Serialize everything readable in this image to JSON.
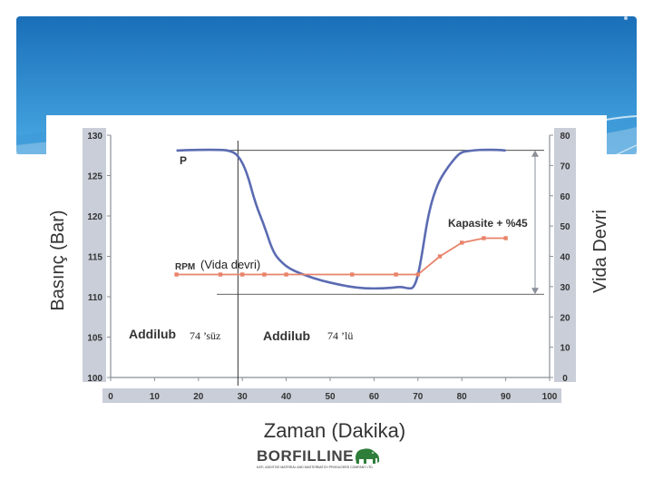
{
  "colors": {
    "header_top": "#1a6fb8",
    "header_bottom": "#49a9e4",
    "pressure_line": "#5b6bb2",
    "rpm_line": "#e8836a",
    "tick_box": "#c9ced8",
    "grid": "#8a8f98"
  },
  "chart_data": {
    "type": "line",
    "xlabel": "Zaman (Dakika)",
    "ylabel": "Basınç (Bar)",
    "y2label": "Vida Devri",
    "xlim": [
      0,
      100
    ],
    "ylim": [
      100,
      130
    ],
    "y2lim": [
      0,
      80
    ],
    "x_ticks": [
      "0",
      "10",
      "20",
      "30",
      "40",
      "50",
      "60",
      "70",
      "80",
      "90",
      "100"
    ],
    "y_ticks": [
      "100",
      "105",
      "110",
      "115",
      "120",
      "125",
      "130"
    ],
    "y2_ticks": [
      "0",
      "10",
      "20",
      "30",
      "40",
      "50",
      "60",
      "70",
      "80"
    ],
    "series": [
      {
        "name": "P",
        "axis": "left",
        "color": "#5b6bb2",
        "x": [
          15,
          20,
          25,
          27,
          29,
          31,
          33,
          35,
          37,
          39,
          41,
          44,
          48,
          52,
          56,
          60,
          64,
          66,
          68,
          69,
          70,
          71,
          72,
          73,
          74,
          75,
          77,
          79,
          80,
          81,
          83,
          85,
          88,
          90
        ],
        "y": [
          128.1,
          128.2,
          128.2,
          128.1,
          127.6,
          125.5,
          121.5,
          118.8,
          115.5,
          114.2,
          113.4,
          112.7,
          112.0,
          111.5,
          111.1,
          111.0,
          111.1,
          111.25,
          111.0,
          111.1,
          112.5,
          115.5,
          119.0,
          121.5,
          123.2,
          124.5,
          126.2,
          127.5,
          127.9,
          128.0,
          128.15,
          128.2,
          128.2,
          128.1
        ]
      },
      {
        "name": "RPM",
        "axis": "right",
        "color": "#e8836a",
        "markers_x": [
          15,
          25,
          30,
          35,
          40,
          55,
          65,
          70,
          75,
          80,
          85,
          90
        ],
        "markers_y": [
          34,
          34,
          34,
          34,
          34,
          34,
          34,
          34,
          40,
          44.5,
          46,
          46
        ]
      }
    ],
    "reference_lines": {
      "vertical_x": 29,
      "upper_y2": 75,
      "lower_y2": 27.5
    },
    "annotations": {
      "p_label": "P",
      "rpm_label": "RPM",
      "rpm_paren": "(Vida devri)",
      "capacity": "Kapasite + %45",
      "addilub_1": "Addilub",
      "addilub_1_suffix": "74 ’süz",
      "addilub_2": "Addilub",
      "addilub_2_suffix": "74 ’lü"
    },
    "grid": false
  },
  "logo": {
    "name": "BORFILLINE",
    "tagline": "KATI, ADDITIVE MATERIAL AND MASTERBATCH PRODUCERS COMPANY LTD"
  }
}
